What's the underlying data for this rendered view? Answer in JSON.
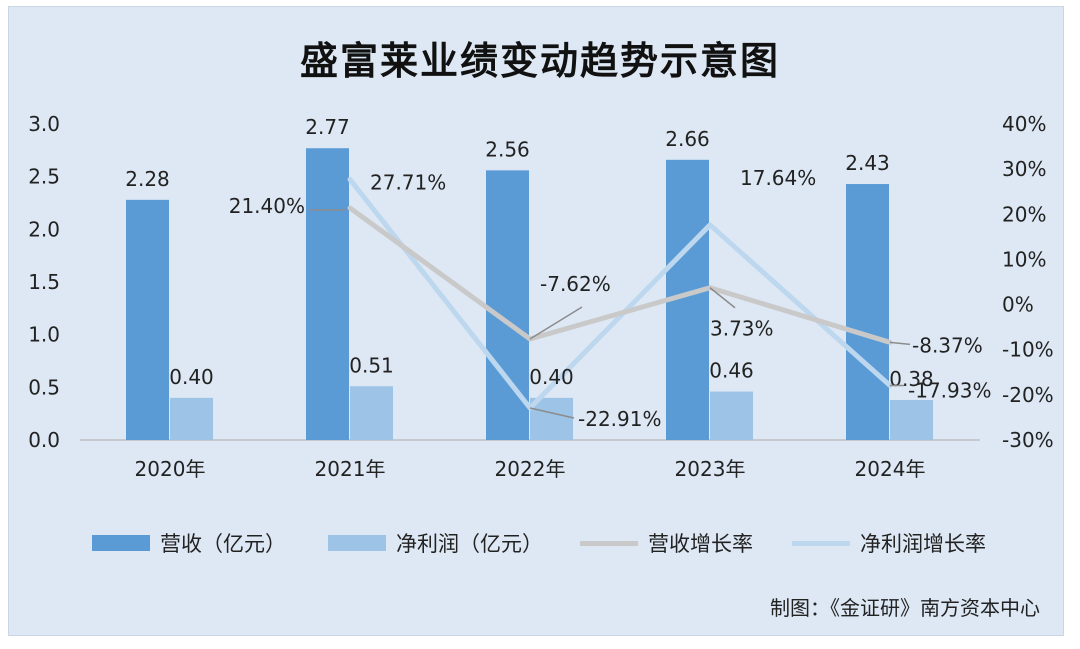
{
  "chart_data": {
    "type": "bar",
    "title": "盛富莱业绩变动趋势示意图",
    "categories": [
      "2020年",
      "2021年",
      "2022年",
      "2023年",
      "2024年"
    ],
    "y_left": {
      "ylim": [
        0,
        3.0
      ],
      "ticks": [
        "0.0",
        "0.5",
        "1.0",
        "1.5",
        "2.0",
        "2.5",
        "3.0"
      ]
    },
    "y_right": {
      "ylim": [
        -30,
        40
      ],
      "ticks": [
        "-30%",
        "-20%",
        "-10%",
        "0%",
        "10%",
        "20%",
        "30%",
        "40%"
      ]
    },
    "series": [
      {
        "name": "营收（亿元）",
        "type": "bar",
        "axis": "left",
        "color": "#5b9bd5",
        "values": [
          2.28,
          2.77,
          2.56,
          2.66,
          2.43
        ],
        "labels": [
          "2.28",
          "2.77",
          "2.56",
          "2.66",
          "2.43"
        ]
      },
      {
        "name": "净利润（亿元）",
        "type": "bar",
        "axis": "left",
        "color": "#9dc3e6",
        "values": [
          0.4,
          0.51,
          0.4,
          0.46,
          0.38
        ],
        "labels": [
          "0.40",
          "0.51",
          "0.40",
          "0.46",
          "0.38"
        ]
      },
      {
        "name": "营收增长率",
        "type": "line",
        "axis": "right",
        "color": "#c9c9c9",
        "x": [
          "2021年",
          "2022年",
          "2023年",
          "2024年"
        ],
        "values": [
          21.4,
          -7.62,
          3.73,
          -8.37
        ],
        "labels": [
          "21.40%",
          "-7.62%",
          "3.73%",
          "-8.37%"
        ]
      },
      {
        "name": "净利润增长率",
        "type": "line",
        "axis": "right",
        "color": "#bdd7ee",
        "x": [
          "2021年",
          "2022年",
          "2023年",
          "2024年"
        ],
        "values": [
          27.71,
          -22.91,
          17.64,
          -17.93
        ],
        "labels": [
          "27.71%",
          "-22.91%",
          "17.64%",
          "-17.93%"
        ]
      }
    ],
    "legend_position": "bottom",
    "grid": false
  },
  "source_note": "制图：《金证研》南方资本中心"
}
